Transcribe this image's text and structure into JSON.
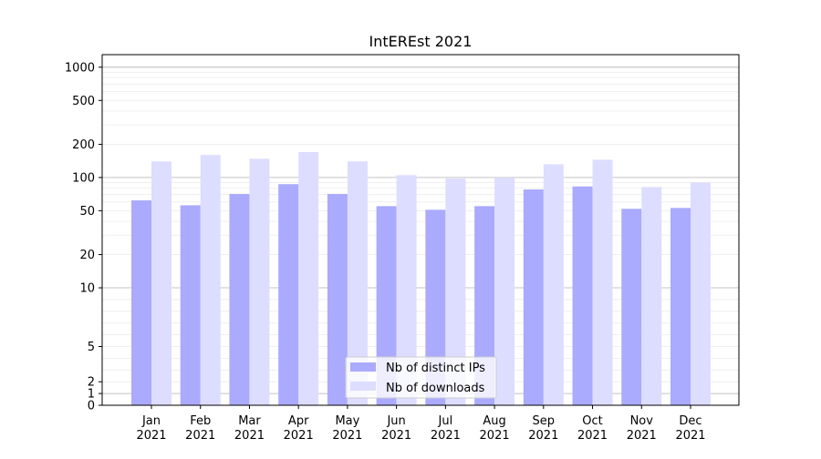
{
  "chart_data": {
    "type": "bar",
    "title": "IntEREst 2021",
    "xlabel": "",
    "ylabel": "",
    "yscale": "symlog",
    "ylim": [
      0,
      1300
    ],
    "yticks": [
      0,
      1,
      2,
      5,
      10,
      20,
      50,
      100,
      200,
      500,
      1000
    ],
    "ytick_labels": [
      "0",
      "1",
      "2",
      "5",
      "10",
      "20",
      "50",
      "100",
      "200",
      "500",
      "1000"
    ],
    "categories": [
      "Jan\n2021",
      "Feb\n2021",
      "Mar\n2021",
      "Apr\n2021",
      "May\n2021",
      "Jun\n2021",
      "Jul\n2021",
      "Aug\n2021",
      "Sep\n2021",
      "Oct\n2021",
      "Nov\n2021",
      "Dec\n2021"
    ],
    "series": [
      {
        "name": "Nb of distinct IPs",
        "color": "#aaaaff",
        "values": [
          62,
          56,
          71,
          87,
          71,
          55,
          51,
          55,
          78,
          83,
          52,
          53
        ]
      },
      {
        "name": "Nb of downloads",
        "color": "#ddddff",
        "values": [
          140,
          160,
          148,
          170,
          140,
          105,
          98,
          100,
          132,
          145,
          82,
          90
        ]
      }
    ],
    "grid": true,
    "legend_position": "bottom-center"
  }
}
